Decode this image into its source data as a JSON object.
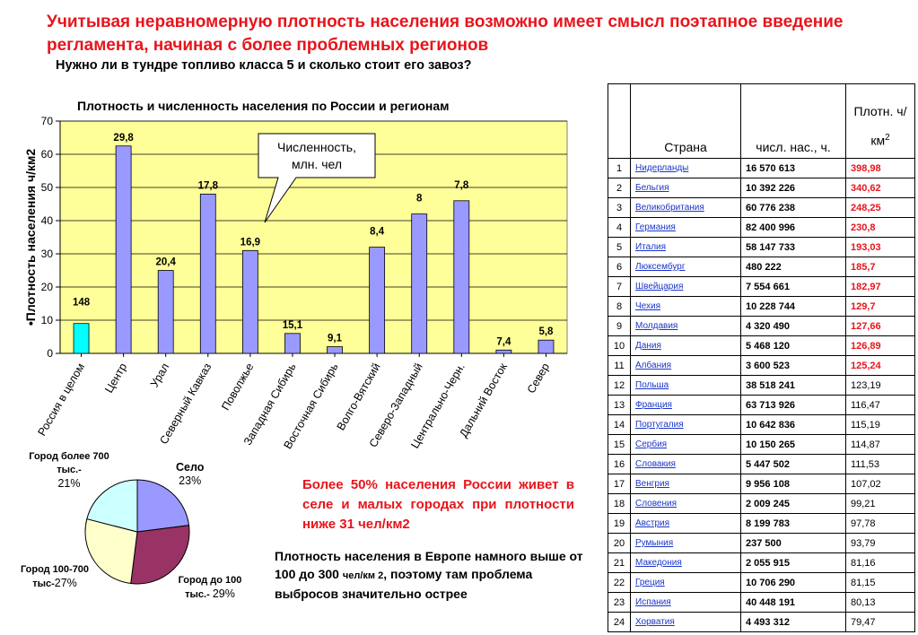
{
  "headline": "Учитывая неравномерную плотность населения возможно имеет смысл поэтапное введение регламента, начиная с более проблемных регионов",
  "subheadline": "Нужно ли в тундре топливо класса 5  и сколько стоит его завоз?",
  "colors": {
    "accent": "#e8141b",
    "bar": "#9999ff",
    "bar_highlight": "#00ffff",
    "plot_bg": "#ffff99",
    "link": "#1a35c9"
  },
  "chart_data": [
    {
      "type": "bar",
      "title": "Плотность и численность населения  по России и регионам",
      "ylabel": "•Плотность населения ч/км2",
      "ylim": [
        0,
        70
      ],
      "yticks": [
        "0",
        "10",
        "20",
        "30",
        "40",
        "50",
        "60",
        "70"
      ],
      "categories": [
        "Россия в целом",
        "Центр",
        "Урал",
        "Северный Кавказ",
        "Поволжье",
        "Западная Сибирь",
        "Восточная Сибирь",
        "Волго-Вятский",
        "Северо-Западный",
        "Центрально-Черн.",
        "Дальний Восток",
        "Север"
      ],
      "values": [
        9,
        62.5,
        25,
        48,
        31,
        6,
        2,
        32,
        42,
        46,
        1,
        4
      ],
      "data_labels": [
        "148",
        "29,8",
        "20,4",
        "17,8",
        "16,9",
        "15,1",
        "9,1",
        "8,4",
        "8",
        "7,8",
        "7,4",
        "5,8"
      ],
      "callout": "Численность, млн. чел",
      "grid": true
    },
    {
      "type": "pie",
      "slices": [
        {
          "label": "Село",
          "value": 23,
          "pct": "23%",
          "color": "#9999ff"
        },
        {
          "label": "Город до 100 тыс.-",
          "value": 29,
          "pct": "29%",
          "color": "#993366"
        },
        {
          "label": "Город 100-700 тыс-",
          "value": 27,
          "pct": "27%",
          "color": "#ffffcc"
        },
        {
          "label": "Город более 700 тыс.-",
          "value": 21,
          "pct": "21%",
          "color": "#ccffff"
        }
      ]
    }
  ],
  "notes": {
    "red": "Более 50% населения России живет в селе и малых городах при плотности ниже 31 чел/км2",
    "black_a": "Плотность населения в Европе намного выше от 100 до 300 ",
    "black_b": "чел/км 2",
    "black_c": ", поэтому там проблема выбросов значительно острее"
  },
  "table": {
    "headers": {
      "country": "Страна",
      "population": "числ. нас., ч.",
      "density": "Плотн. ч/км",
      "density_unit_sup": "2"
    },
    "rows": [
      {
        "n": "1",
        "country": "Нидерланды",
        "pop": "16 570 613",
        "dens": "398,98",
        "hi": true
      },
      {
        "n": "2",
        "country": "Бельгия",
        "pop": "10 392 226",
        "dens": "340,62",
        "hi": true
      },
      {
        "n": "3",
        "country": "Великобритания",
        "pop": "60 776 238",
        "dens": "248,25",
        "hi": true
      },
      {
        "n": "4",
        "country": "Германия",
        "pop": "82 400 996",
        "dens": "230,8",
        "hi": true
      },
      {
        "n": "5",
        "country": "Италия",
        "pop": "58 147 733",
        "dens": "193,03",
        "hi": true
      },
      {
        "n": "6",
        "country": "Люксембург",
        "pop": "480 222",
        "dens": "185,7",
        "hi": true
      },
      {
        "n": "7",
        "country": "Швейцария",
        "pop": "7 554 661",
        "dens": "182,97",
        "hi": true
      },
      {
        "n": "8",
        "country": "Чехия",
        "pop": "10 228 744",
        "dens": "129,7",
        "hi": true
      },
      {
        "n": "9",
        "country": "Молдавия",
        "pop": "4 320 490",
        "dens": "127,66",
        "hi": true
      },
      {
        "n": "10",
        "country": "Дания",
        "pop": "5 468 120",
        "dens": "126,89",
        "hi": true
      },
      {
        "n": "11",
        "country": "Албания",
        "pop": "3 600 523",
        "dens": "125,24",
        "hi": true
      },
      {
        "n": "12",
        "country": "Польша",
        "pop": " 38 518 241",
        "dens": "123,19",
        "hi": false
      },
      {
        "n": "13",
        "country": "Франция",
        "pop": "63 713 926",
        "dens": "116,47",
        "hi": false
      },
      {
        "n": "14",
        "country": "Португалия",
        "pop": "10 642 836",
        "dens": "115,19",
        "hi": false
      },
      {
        "n": "15",
        "country": "Сербия",
        "pop": "10 150 265",
        "dens": "114,87",
        "hi": false
      },
      {
        "n": "16",
        "country": "Словакия",
        "pop": "5 447 502",
        "dens": "111,53",
        "hi": false
      },
      {
        "n": "17",
        "country": "Венгрия",
        "pop": "9 956 108",
        "dens": "107,02",
        "hi": false
      },
      {
        "n": "18",
        "country": "Словения",
        "pop": "2 009 245",
        "dens": "99,21",
        "hi": false
      },
      {
        "n": "19",
        "country": "Австрия",
        "pop": "8 199 783",
        "dens": "97,78",
        "hi": false
      },
      {
        "n": "20",
        "country": "Румыния",
        "pop": "237 500",
        "dens": "93,79",
        "hi": false
      },
      {
        "n": "21",
        "country": "Македония",
        "pop": "2 055 915",
        "dens": "81,16",
        "hi": false
      },
      {
        "n": "22",
        "country": "Греция",
        "pop": "10 706 290",
        "dens": "81,15",
        "hi": false
      },
      {
        "n": "23",
        "country": "Испания",
        "pop": "40 448 191",
        "dens": "80,13",
        "hi": false
      },
      {
        "n": "24",
        "country": "Хорватия",
        "pop": "4 493 312",
        "dens": "79,47",
        "hi": false
      }
    ]
  }
}
